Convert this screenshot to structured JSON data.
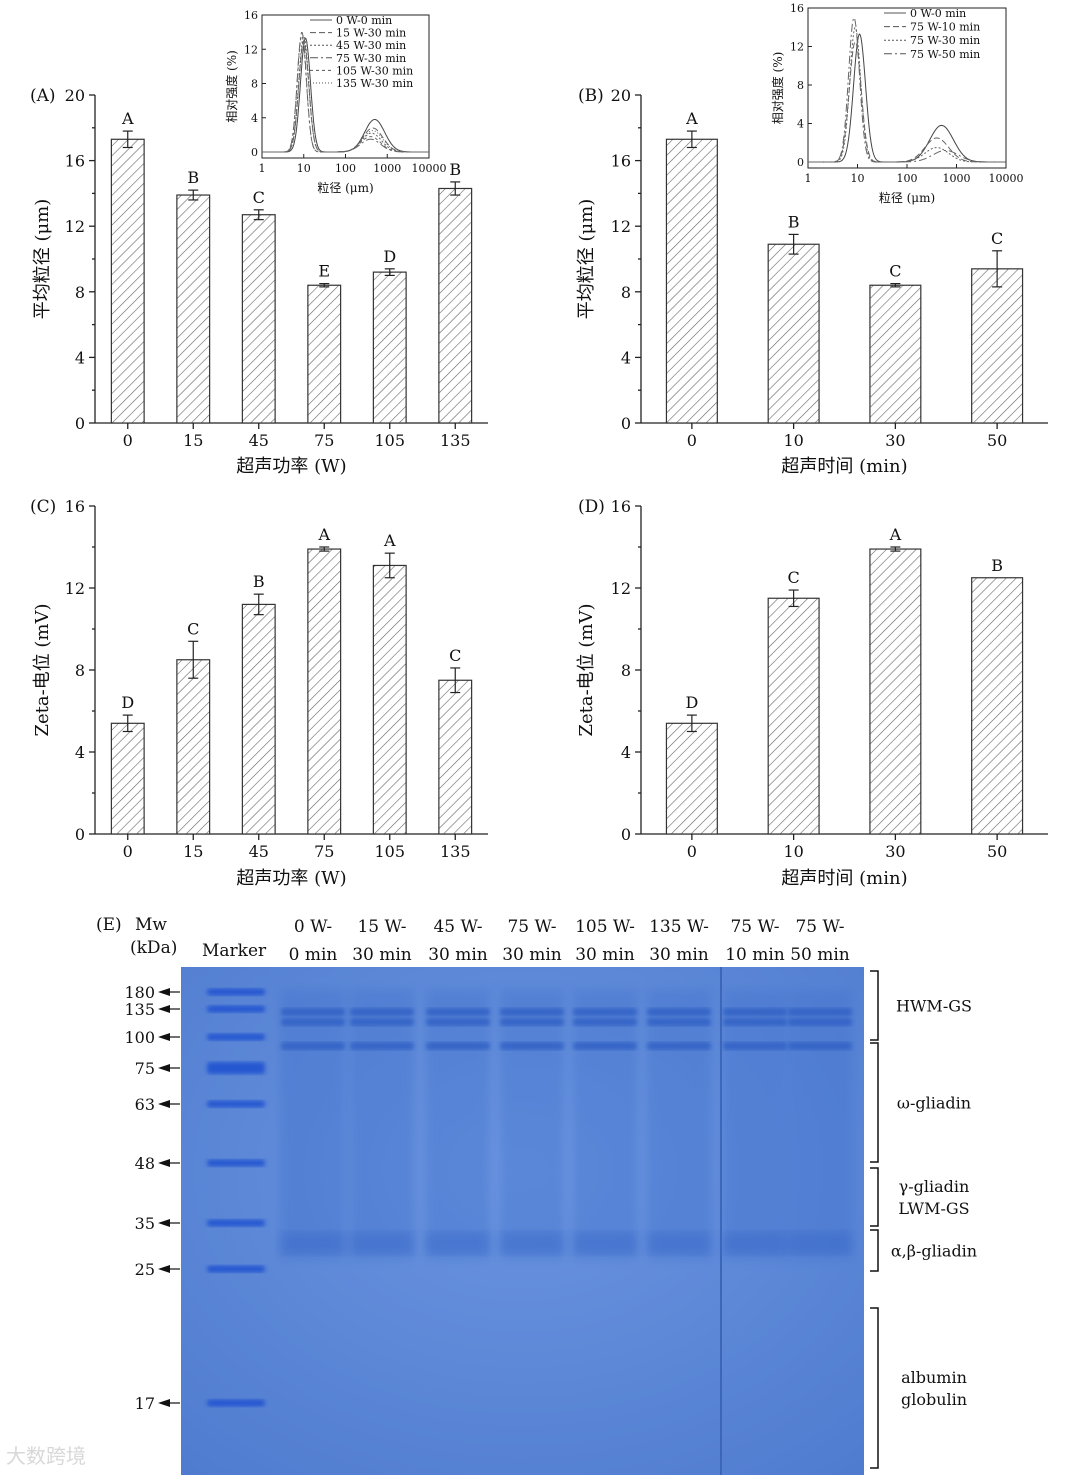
{
  "chart_data": [
    {
      "id": "A",
      "type": "bar",
      "panel_label": "(A)",
      "categories": [
        "0",
        "15",
        "45",
        "75",
        "105",
        "135"
      ],
      "values": [
        17.3,
        13.9,
        12.7,
        8.4,
        9.2,
        14.3
      ],
      "errors": [
        0.5,
        0.3,
        0.3,
        0.1,
        0.2,
        0.4
      ],
      "letters": [
        "A",
        "B",
        "C",
        "E",
        "D",
        "B"
      ],
      "xlabel": "超声功率 (W)",
      "ylabel": "平均粒径 (μm)",
      "ylim": [
        0,
        20
      ],
      "yticks": [
        0,
        4,
        8,
        12,
        16,
        20
      ]
    },
    {
      "id": "B",
      "type": "bar",
      "panel_label": "(B)",
      "categories": [
        "0",
        "10",
        "30",
        "50"
      ],
      "values": [
        17.3,
        10.9,
        8.4,
        9.4
      ],
      "errors": [
        0.5,
        0.6,
        0.1,
        1.1
      ],
      "letters": [
        "A",
        "B",
        "C",
        "C"
      ],
      "xlabel": "超声时间 (min)",
      "ylabel": "平均粒径 (μm)",
      "ylim": [
        0,
        20
      ],
      "yticks": [
        0,
        4,
        8,
        12,
        16,
        20
      ]
    },
    {
      "id": "C",
      "type": "bar",
      "panel_label": "(C)",
      "categories": [
        "0",
        "15",
        "45",
        "75",
        "105",
        "135"
      ],
      "values": [
        5.4,
        8.5,
        11.2,
        13.9,
        13.1,
        7.5
      ],
      "errors": [
        0.4,
        0.9,
        0.5,
        0.1,
        0.6,
        0.6
      ],
      "letters": [
        "D",
        "C",
        "B",
        "A",
        "A",
        "C"
      ],
      "xlabel": "超声功率 (W)",
      "ylabel": "Zeta-电位 (mV)",
      "ylim": [
        0,
        16
      ],
      "yticks": [
        0,
        4,
        8,
        12,
        16
      ]
    },
    {
      "id": "D",
      "type": "bar",
      "panel_label": "(D)",
      "categories": [
        "0",
        "10",
        "30",
        "50"
      ],
      "values": [
        5.4,
        11.5,
        13.9,
        12.5
      ],
      "errors": [
        0.4,
        0.4,
        0.1,
        0.0
      ],
      "letters": [
        "D",
        "C",
        "A",
        "B"
      ],
      "xlabel": "超声时间 (min)",
      "ylabel": "Zeta-电位 (mV)",
      "ylim": [
        0,
        16
      ],
      "yticks": [
        0,
        4,
        8,
        12,
        16
      ]
    },
    {
      "id": "A-inset",
      "type": "line",
      "parent": "A",
      "xscale": "log",
      "xlim": [
        1,
        10000
      ],
      "ylim": [
        0,
        16
      ],
      "xticks": [
        "1",
        "10",
        "100",
        "1000",
        "10000"
      ],
      "yticks": [
        0,
        4,
        8,
        12,
        16
      ],
      "xlabel": "粒径 (μm)",
      "ylabel": "相对强度 (%)",
      "series": [
        {
          "name": "0 W-0 min",
          "peaks": [
            [
              11,
              13.3,
              0.12
            ],
            [
              500,
              3.8,
              0.24
            ]
          ],
          "dash": ""
        },
        {
          "name": "15 W-30 min",
          "peaks": [
            [
              10,
              13.0,
              0.12
            ],
            [
              450,
              2.8,
              0.24
            ]
          ],
          "dash": "6,3"
        },
        {
          "name": "45 W-30 min",
          "peaks": [
            [
              10,
              13.5,
              0.12
            ],
            [
              420,
              2.2,
              0.24
            ]
          ],
          "dash": "2,2"
        },
        {
          "name": "75 W-30 min",
          "peaks": [
            [
              9,
              14.0,
              0.11
            ],
            [
              400,
              1.5,
              0.24
            ]
          ],
          "dash": "8,3,2,3"
        },
        {
          "name": "105 W-30 min",
          "peaks": [
            [
              9,
              13.6,
              0.11
            ],
            [
              400,
              1.8,
              0.24
            ]
          ],
          "dash": "3,3"
        },
        {
          "name": "135 W-30 min",
          "peaks": [
            [
              10,
              12.8,
              0.12
            ],
            [
              450,
              2.5,
              0.24
            ]
          ],
          "dash": "1,2"
        }
      ]
    },
    {
      "id": "B-inset",
      "type": "line",
      "parent": "B",
      "xscale": "log",
      "xlim": [
        1,
        10000
      ],
      "ylim": [
        0,
        16
      ],
      "xticks": [
        "1",
        "10",
        "100",
        "1000",
        "10000"
      ],
      "yticks": [
        0,
        4,
        8,
        12,
        16
      ],
      "xlabel": "粒径 (μm)",
      "ylabel": "相对强度 (%)",
      "series": [
        {
          "name": "0 W-0 min",
          "peaks": [
            [
              11,
              13.3,
              0.12
            ],
            [
              500,
              3.8,
              0.24
            ]
          ],
          "dash": ""
        },
        {
          "name": "75 W-10 min",
          "peaks": [
            [
              9,
              12.5,
              0.12
            ],
            [
              400,
              2.5,
              0.24
            ]
          ],
          "dash": "6,3"
        },
        {
          "name": "75 W-30 min",
          "peaks": [
            [
              9,
              14.0,
              0.11
            ],
            [
              400,
              1.5,
              0.24
            ]
          ],
          "dash": "2,2"
        },
        {
          "name": "75 W-50 min",
          "peaks": [
            [
              8.5,
              15.0,
              0.11
            ],
            [
              600,
              1.2,
              0.26
            ]
          ],
          "dash": "8,3,2,3"
        }
      ]
    }
  ],
  "gel": {
    "panel_label": "(E)",
    "mw_header": "Mw",
    "mw_unit": "(kDa)",
    "marker_label": "Marker",
    "lanes": [
      {
        "line1": "0 W-",
        "line2": "0 min"
      },
      {
        "line1": "15 W-",
        "line2": "30 min"
      },
      {
        "line1": "45 W-",
        "line2": "30 min"
      },
      {
        "line1": "75 W-",
        "line2": "30 min"
      },
      {
        "line1": "105 W-",
        "line2": "30 min"
      },
      {
        "line1": "135 W-",
        "line2": "30 min"
      },
      {
        "line1": "75 W-",
        "line2": "10 min"
      },
      {
        "line1": "75 W-",
        "line2": "50 min"
      }
    ],
    "mw_markers": [
      "180",
      "135",
      "100",
      "75",
      "63",
      "48",
      "35",
      "25",
      "17"
    ],
    "groups": [
      {
        "lines": [
          "HWM-GS"
        ]
      },
      {
        "lines": [
          "ω-gliadin"
        ]
      },
      {
        "lines": [
          "γ-gliadin",
          "LWM-GS"
        ]
      },
      {
        "lines": [
          "α,β-gliadin"
        ]
      },
      {
        "lines": [
          "albumin",
          "globulin"
        ]
      }
    ],
    "colors": {
      "gel": "#5b86d6",
      "band": "#2f5fc4",
      "marker_band": "#1f4fd0"
    }
  },
  "watermark": "大数跨境"
}
